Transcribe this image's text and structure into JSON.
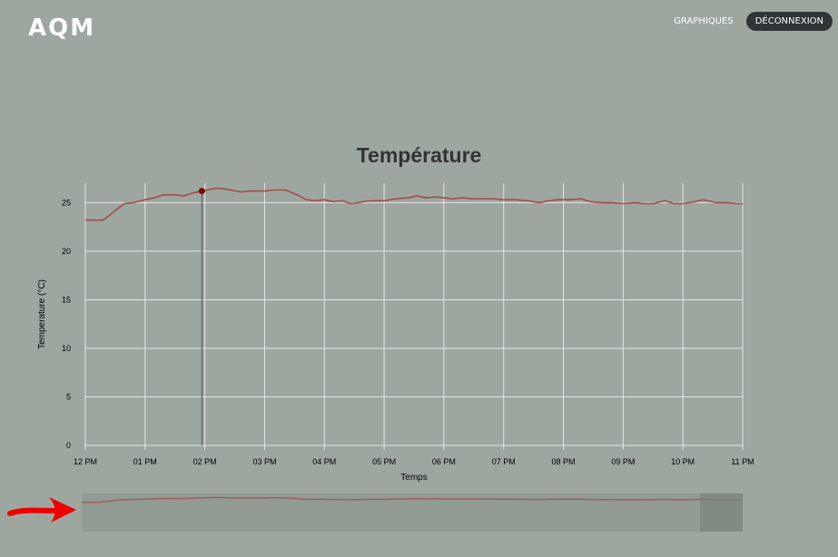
{
  "header": {
    "logo": "AQM",
    "nav_graphiques": "GRAPHIQUES",
    "nav_deconnexion": "DÉCONNEXION"
  },
  "colors": {
    "background": "#9ea6a0",
    "line": "#a44a4e",
    "grid": "#e4e6e4",
    "marker": "#7a0000",
    "button": "#2f3436",
    "arrow": "#ee0000"
  },
  "chart_data": {
    "type": "line",
    "title": "Température",
    "xlabel": "Temps",
    "ylabel": "Temperature (°C)",
    "ylim": [
      0,
      27
    ],
    "xlim": [
      0,
      11
    ],
    "yticks": [
      0,
      5,
      10,
      15,
      20,
      25
    ],
    "xtick_labels": [
      "12 PM",
      "01 PM",
      "02 PM",
      "03 PM",
      "04 PM",
      "05 PM",
      "06 PM",
      "07 PM",
      "08 PM",
      "09 PM",
      "10 PM",
      "11 PM"
    ],
    "x_unit": "hours after 12 PM",
    "grid": true,
    "highlight_point": {
      "x": 1.95,
      "y": 26.2
    },
    "series": [
      {
        "x": [
          0,
          0.3,
          0.65,
          0.8,
          1.0,
          1.15,
          1.3,
          1.5,
          1.65,
          1.8,
          1.95,
          2.2,
          2.35,
          2.6,
          2.75,
          3.0,
          3.15,
          3.35,
          3.55,
          3.7,
          3.85,
          4.0,
          4.15,
          4.3,
          4.45,
          4.65,
          4.8,
          5.0,
          5.2,
          5.4,
          5.55,
          5.7,
          5.85,
          6.0,
          6.15,
          6.3,
          6.5,
          6.7,
          6.85,
          7.0,
          7.2,
          7.4,
          7.6,
          7.75,
          7.9,
          8.1,
          8.3,
          8.45,
          8.65,
          8.8,
          9.0,
          9.2,
          9.35,
          9.5,
          9.7,
          9.85,
          10.0,
          10.2,
          10.35,
          10.55,
          10.75,
          10.9,
          11.0
        ],
        "y": [
          23.2,
          23.2,
          24.9,
          25.0,
          25.3,
          25.5,
          25.8,
          25.8,
          25.7,
          26.0,
          26.2,
          26.5,
          26.4,
          26.1,
          26.2,
          26.2,
          26.3,
          26.3,
          25.8,
          25.3,
          25.2,
          25.3,
          25.1,
          25.2,
          24.9,
          25.1,
          25.2,
          25.2,
          25.4,
          25.5,
          25.7,
          25.5,
          25.6,
          25.5,
          25.4,
          25.5,
          25.4,
          25.4,
          25.4,
          25.3,
          25.3,
          25.2,
          25.0,
          25.2,
          25.3,
          25.3,
          25.4,
          25.1,
          25.0,
          25.0,
          24.9,
          25.0,
          24.9,
          24.9,
          25.2,
          24.9,
          24.9,
          25.1,
          25.3,
          25.0,
          25.0,
          24.9,
          24.9
        ]
      }
    ]
  }
}
